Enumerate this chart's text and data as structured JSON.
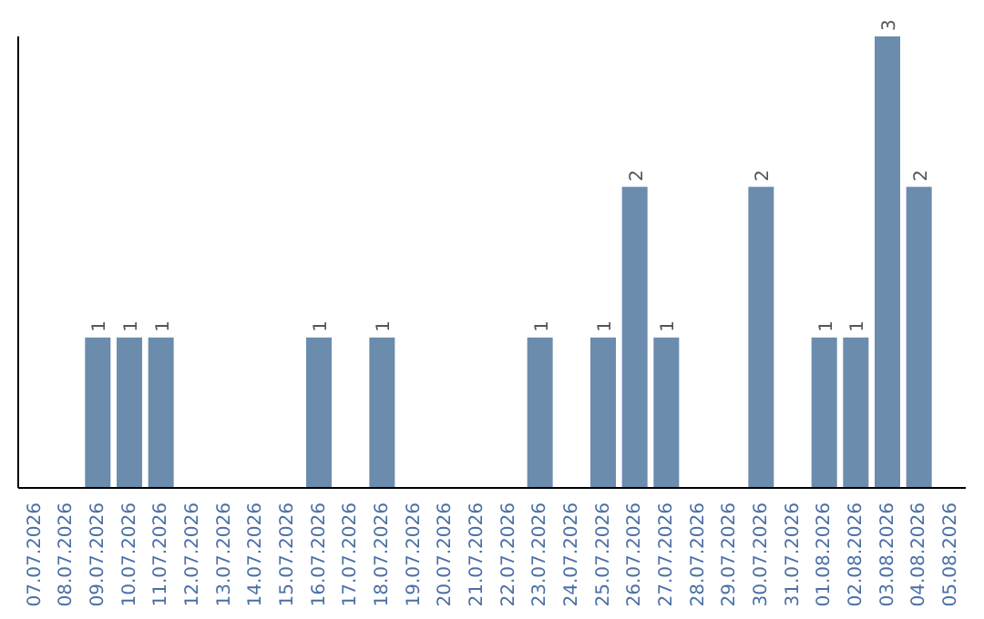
{
  "chart_data": {
    "type": "bar",
    "categories": [
      "07.07.2026",
      "08.07.2026",
      "09.07.2026",
      "10.07.2026",
      "11.07.2026",
      "12.07.2026",
      "13.07.2026",
      "14.07.2026",
      "15.07.2026",
      "16.07.2026",
      "17.07.2026",
      "18.07.2026",
      "19.07.2026",
      "20.07.2026",
      "21.07.2026",
      "22.07.2026",
      "23.07.2026",
      "24.07.2026",
      "25.07.2026",
      "26.07.2026",
      "27.07.2026",
      "28.07.2026",
      "29.07.2026",
      "30.07.2026",
      "31.07.2026",
      "01.08.2026",
      "02.08.2026",
      "03.08.2026",
      "04.08.2026",
      "05.08.2026"
    ],
    "values": [
      0,
      0,
      1,
      1,
      1,
      0,
      0,
      0,
      0,
      1,
      0,
      1,
      0,
      0,
      0,
      0,
      1,
      0,
      1,
      2,
      1,
      0,
      0,
      2,
      0,
      1,
      1,
      3,
      2,
      0
    ],
    "value_labels": [
      null,
      null,
      "1",
      "1",
      "1",
      null,
      null,
      null,
      null,
      "1",
      null,
      "1",
      null,
      null,
      null,
      null,
      "1",
      null,
      "1",
      "2",
      "1",
      null,
      null,
      "2",
      null,
      "1",
      "1",
      "3",
      "2",
      null
    ],
    "color": "#6b8cad",
    "tick_labels": "x"
  }
}
